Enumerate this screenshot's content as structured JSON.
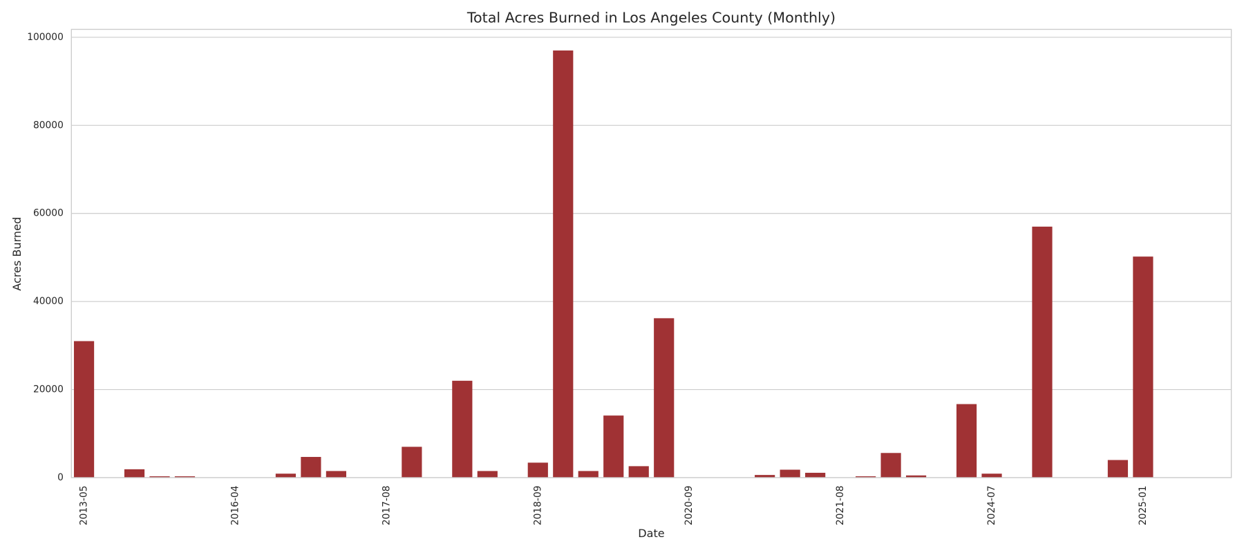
{
  "chart_data": {
    "type": "bar",
    "title": "Total Acres Burned in Los Angeles County (Monthly)",
    "x_label": "Date",
    "y_label": "Acres Burned",
    "categories": [
      "2013-05",
      null,
      null,
      null,
      null,
      null,
      "2016-04",
      null,
      null,
      null,
      null,
      null,
      "2017-08",
      null,
      null,
      null,
      null,
      null,
      "2018-09",
      null,
      null,
      null,
      null,
      null,
      "2020-09",
      null,
      null,
      null,
      null,
      null,
      "2021-08",
      null,
      null,
      null,
      null,
      null,
      "2024-07",
      null,
      null,
      null,
      null,
      null,
      "2025-01",
      null,
      null,
      null
    ],
    "values": [
      31000,
      0,
      1900,
      300,
      300,
      0,
      0,
      0,
      900,
      4700,
      1500,
      0,
      0,
      7000,
      0,
      22000,
      1500,
      0,
      3400,
      97000,
      1500,
      14100,
      2600,
      36200,
      0,
      0,
      0,
      600,
      1800,
      1100,
      0,
      300,
      5600,
      500,
      0,
      16700,
      900,
      0,
      57000,
      0,
      0,
      4000,
      50200,
      0,
      0,
      0
    ],
    "color": "#a03234",
    "ylim": [
      0,
      101800
    ],
    "yticks": [
      0,
      20000,
      40000,
      60000,
      80000,
      100000
    ],
    "grid": true
  }
}
